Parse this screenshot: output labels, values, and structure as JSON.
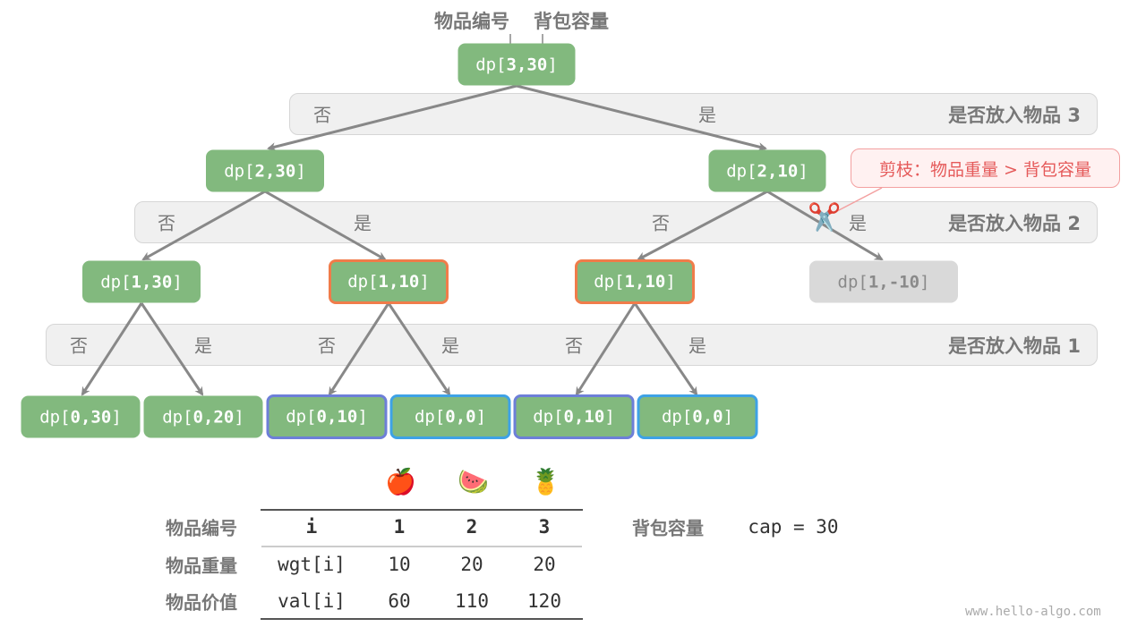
{
  "header": {
    "item_index_label": "物品编号",
    "capacity_label": "背包容量"
  },
  "root": {
    "prefix": "dp[",
    "args": "3,30",
    "suffix": "]"
  },
  "bands": [
    {
      "label": "是否放入物品 3",
      "no": "否",
      "yes": "是"
    },
    {
      "label": "是否放入物品 2",
      "no": "否",
      "yes": "是"
    },
    {
      "label": "是否放入物品 1",
      "no": "否",
      "yes": "是"
    }
  ],
  "level1": [
    {
      "prefix": "dp[",
      "args": "2,30",
      "suffix": "]"
    },
    {
      "prefix": "dp[",
      "args": "2,10",
      "suffix": "]"
    }
  ],
  "level2": [
    {
      "prefix": "dp[",
      "args": "1,30",
      "suffix": "]",
      "highlight": "none"
    },
    {
      "prefix": "dp[",
      "args": "1,10",
      "suffix": "]",
      "highlight": "orange"
    },
    {
      "prefix": "dp[",
      "args": "1,10",
      "suffix": "]",
      "highlight": "orange"
    },
    {
      "prefix": "dp[",
      "args": "1,-10",
      "suffix": "]",
      "highlight": "pruned"
    }
  ],
  "level3": [
    {
      "prefix": "dp[",
      "args": "0,30",
      "suffix": "]",
      "highlight": "none"
    },
    {
      "prefix": "dp[",
      "args": "0,20",
      "suffix": "]",
      "highlight": "none"
    },
    {
      "prefix": "dp[",
      "args": "0,10",
      "suffix": "]",
      "highlight": "purple"
    },
    {
      "prefix": "dp[",
      "args": "0,0",
      "suffix": "]",
      "highlight": "blue"
    },
    {
      "prefix": "dp[",
      "args": "0,10",
      "suffix": "]",
      "highlight": "purple"
    },
    {
      "prefix": "dp[",
      "args": "0,0",
      "suffix": "]",
      "highlight": "blue"
    }
  ],
  "prune_callout": {
    "text": "剪枝：物品重量 > 背包容量",
    "icon": "scissors-icon",
    "glyph": "✂️"
  },
  "table": {
    "icons": [
      {
        "name": "apple-icon",
        "glyph": "🍎"
      },
      {
        "name": "watermelon-icon",
        "glyph": "🍉"
      },
      {
        "name": "pineapple-icon",
        "glyph": "🍍"
      }
    ],
    "rows": [
      {
        "label": "物品编号",
        "key": "i",
        "values": [
          "1",
          "2",
          "3"
        ]
      },
      {
        "label": "物品重量",
        "key": "wgt[i]",
        "values": [
          "10",
          "20",
          "20"
        ]
      },
      {
        "label": "物品价值",
        "key": "val[i]",
        "values": [
          "60",
          "110",
          "120"
        ]
      }
    ]
  },
  "capacity": {
    "label": "背包容量",
    "value": "cap = 30"
  },
  "watermark": "www.hello-algo.com",
  "colors": {
    "node": "#82b97e",
    "orange": "#f07c4a",
    "purple": "#6d7fd8",
    "blue": "#3ea2e6",
    "pruned": "#d9d9d9",
    "callout": "#e55a5a"
  }
}
